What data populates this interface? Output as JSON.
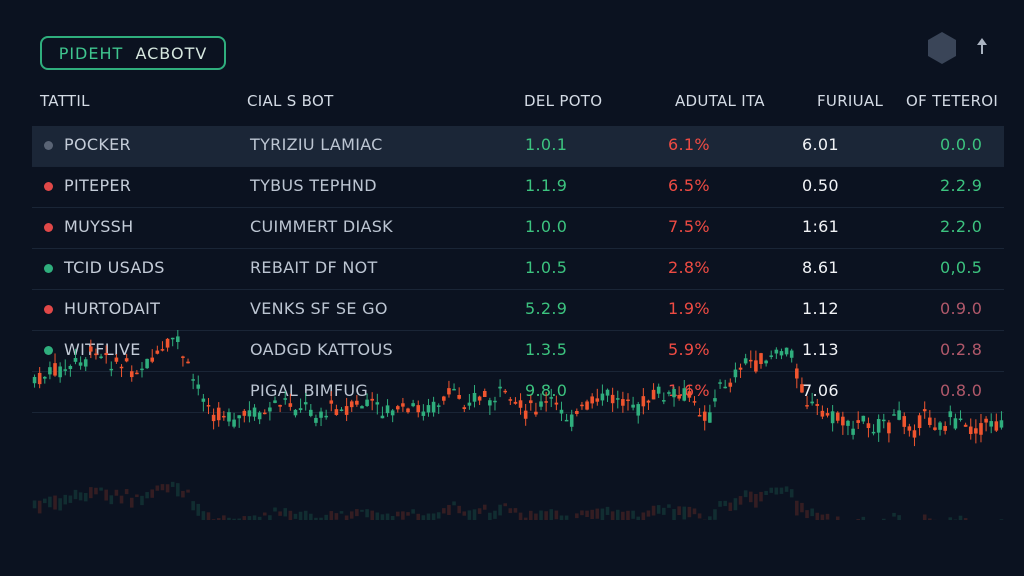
{
  "brand": {
    "prefix": "PIDEHT",
    "name": "ACBOTV"
  },
  "icons": {
    "hex": "hexagon-icon",
    "arrow": "arrow-up-icon"
  },
  "colors": {
    "up": "#3cc37f",
    "down": "#ee4b43",
    "accent": "#2fae7d",
    "background": "#0b1220"
  },
  "columns": [
    "TATTIL",
    "CIAL S BOT",
    "DEL POTO",
    "ADUTAL ITA",
    "FURIUAL",
    "OF TETEROI"
  ],
  "rows": [
    {
      "name": "POCKER",
      "type": "TYRIZIU LAMIAC",
      "del": "1.0.1",
      "act": "6.1%",
      "fur": "6.01",
      "of": "0.0.0",
      "dot": "#5a6475",
      "of_color": "#3cc37f",
      "selected": true
    },
    {
      "name": "PITEPER",
      "type": "TYBUS TEPHND",
      "del": "1.1.9",
      "act": "6.5%",
      "fur": "0.50",
      "of": "2.2.9",
      "dot": "#e04848",
      "of_color": "#3cc37f",
      "selected": false
    },
    {
      "name": "MUYSSH",
      "type": "CUIMMERT DIASK",
      "del": "1.0.0",
      "act": "7.5%",
      "fur": "1:61",
      "of": "2.2.0",
      "dot": "#e04848",
      "of_color": "#3cc37f",
      "selected": false
    },
    {
      "name": "TCID USADS",
      "type": "REBAIT DF NOT",
      "del": "1.0.5",
      "act": "2.8%",
      "fur": "8.61",
      "of": "0,0.5",
      "dot": "#2fae7d",
      "of_color": "#3cc37f",
      "selected": false
    },
    {
      "name": "HURTODAIT",
      "type": "VENKS SF SE GO",
      "del": "5.2.9",
      "act": "1.9%",
      "fur": "1.12",
      "of": "0.9.0",
      "dot": "#e04848",
      "of_color": "#b0586a",
      "selected": false
    },
    {
      "name": "WITFLIVE",
      "type": "OADGD KATTOUS",
      "del": "1.3.5",
      "act": "5.9%",
      "fur": "1.13",
      "of": "0.2.8",
      "dot": "#2fae7d",
      "of_color": "#b0586a",
      "selected": false
    },
    {
      "name": "",
      "type": "PIGAL BIMFUG",
      "del": "9.8.0",
      "act": "1.6%",
      "fur": "7.06",
      "of": "0.8.0",
      "dot": "",
      "of_color": "#b0586a",
      "selected": false
    }
  ]
}
